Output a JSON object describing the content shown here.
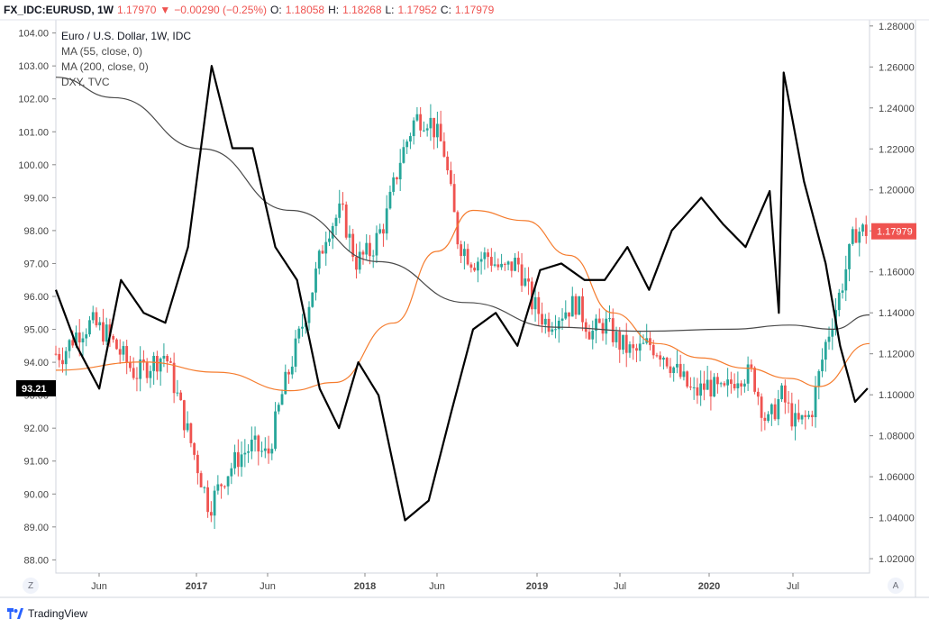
{
  "header": {
    "symbol": "FX_IDC:EURUSD, 1W",
    "last": "1.17970",
    "change_arrow": "▼",
    "change": "−0.00290 (−0.25%)",
    "o_label": "O:",
    "o_value": "1.18058",
    "h_label": "H:",
    "h_value": "1.18268",
    "l_label": "L:",
    "l_value": "1.17952",
    "c_label": "C:",
    "c_value": "1.17979"
  },
  "legend": {
    "title": "Euro / U.S. Dollar, 1W, IDC",
    "ma55": "MA (55, close, 0)",
    "ma200": "MA (200, close, 0)",
    "dxy": "DXY, TVC"
  },
  "corners": {
    "left": "Z",
    "right": "A"
  },
  "footer": {
    "brand": "TradingView",
    "logo_icon": "tradingview-logo-icon"
  },
  "colors": {
    "up": "#26a69a",
    "down": "#ef5350",
    "ma55": "#f57c2e",
    "ma200": "#4a4a4a",
    "dxy": "#000000",
    "price_badge": "#ef5350",
    "dxy_badge": "#000000"
  },
  "chart_data": {
    "type": "line",
    "title": "Euro / U.S. Dollar, 1W, IDC",
    "x_ticks": [
      "Jun",
      "2017",
      "Jun",
      "2018",
      "Jun",
      "2019",
      "Jul",
      "2020",
      "Jul"
    ],
    "right_axis": {
      "label": "EURUSD",
      "ticks": [
        "1.28000",
        "1.26000",
        "1.24000",
        "1.22000",
        "1.20000",
        "1.18000",
        "1.16000",
        "1.14000",
        "1.12000",
        "1.10000",
        "1.08000",
        "1.06000",
        "1.04000",
        "1.02000"
      ],
      "range": [
        1.013,
        1.283
      ],
      "last_value": "1.17979"
    },
    "left_axis": {
      "label": "DXY",
      "ticks": [
        "104.00",
        "103.00",
        "102.00",
        "101.00",
        "100.00",
        "99.00",
        "98.00",
        "97.00",
        "96.00",
        "95.00",
        "94.00",
        "93.00",
        "92.00",
        "91.00",
        "90.00",
        "89.00",
        "88.00"
      ],
      "range": [
        87.6,
        104.4
      ],
      "last_value": "93.21"
    },
    "x_range": [
      "2016-02-01",
      "2020-09-14"
    ],
    "series": [
      {
        "name": "Euro / U.S. Dollar, 1W, IDC",
        "kind": "candlestick",
        "axis": "right",
        "x": [
          "2016-02-15",
          "2016-03-15",
          "2016-04-15",
          "2016-05-15",
          "2016-06-15",
          "2016-07-15",
          "2016-08-15",
          "2016-09-15",
          "2016-10-15",
          "2016-11-15",
          "2016-12-15",
          "2017-01-15",
          "2017-02-15",
          "2017-03-15",
          "2017-04-15",
          "2017-05-15",
          "2017-06-15",
          "2017-07-15",
          "2017-08-15",
          "2017-09-15",
          "2017-10-15",
          "2017-11-15",
          "2017-12-15",
          "2018-01-15",
          "2018-02-15",
          "2018-03-15",
          "2018-04-15",
          "2018-05-15",
          "2018-06-15",
          "2018-07-15",
          "2018-08-15",
          "2018-09-15",
          "2018-10-15",
          "2018-11-15",
          "2018-12-15",
          "2019-01-15",
          "2019-02-15",
          "2019-03-15",
          "2019-04-15",
          "2019-05-15",
          "2019-06-15",
          "2019-07-15",
          "2019-08-15",
          "2019-09-15",
          "2019-10-15",
          "2019-11-15",
          "2019-12-15",
          "2020-01-15",
          "2020-02-15",
          "2020-03-15",
          "2020-04-15",
          "2020-05-15",
          "2020-06-15",
          "2020-07-15",
          "2020-08-15",
          "2020-09-10"
        ],
        "y": [
          1.12,
          1.13,
          1.135,
          1.13,
          1.12,
          1.11,
          1.115,
          1.12,
          1.095,
          1.07,
          1.045,
          1.06,
          1.07,
          1.075,
          1.07,
          1.1,
          1.125,
          1.15,
          1.18,
          1.19,
          1.165,
          1.17,
          1.185,
          1.215,
          1.235,
          1.235,
          1.22,
          1.175,
          1.165,
          1.168,
          1.16,
          1.165,
          1.145,
          1.135,
          1.14,
          1.145,
          1.13,
          1.135,
          1.125,
          1.12,
          1.125,
          1.12,
          1.11,
          1.1,
          1.105,
          1.1,
          1.11,
          1.11,
          1.085,
          1.1,
          1.085,
          1.09,
          1.125,
          1.15,
          1.18,
          1.18
        ]
      },
      {
        "name": "MA (55, close, 0)",
        "kind": "line",
        "axis": "right",
        "x": [
          "2016-02-01",
          "2016-08-01",
          "2017-01-01",
          "2017-06-01",
          "2017-09-01",
          "2018-01-01",
          "2018-04-01",
          "2018-06-15",
          "2018-10-01",
          "2019-01-01",
          "2019-04-01",
          "2019-07-01",
          "2019-10-01",
          "2020-01-01",
          "2020-04-01",
          "2020-06-01",
          "2020-09-14"
        ],
        "y": [
          1.112,
          1.116,
          1.111,
          1.102,
          1.106,
          1.135,
          1.17,
          1.19,
          1.185,
          1.168,
          1.14,
          1.125,
          1.118,
          1.113,
          1.108,
          1.104,
          1.125
        ]
      },
      {
        "name": "MA (200, close, 0)",
        "kind": "line",
        "axis": "right",
        "x": [
          "2016-02-01",
          "2016-06-01",
          "2016-12-01",
          "2017-06-01",
          "2017-12-01",
          "2018-06-01",
          "2018-12-01",
          "2019-06-01",
          "2019-12-01",
          "2020-04-01",
          "2020-07-01",
          "2020-09-14"
        ],
        "y": [
          1.255,
          1.245,
          1.22,
          1.19,
          1.165,
          1.145,
          1.133,
          1.131,
          1.132,
          1.134,
          1.132,
          1.139
        ]
      },
      {
        "name": "DXY, TVC",
        "kind": "line",
        "axis": "left",
        "x": [
          "2016-02-01",
          "2016-03-15",
          "2016-05-01",
          "2016-06-15",
          "2016-08-01",
          "2016-09-15",
          "2016-11-01",
          "2016-12-20",
          "2017-02-01",
          "2017-03-15",
          "2017-05-01",
          "2017-06-15",
          "2017-08-01",
          "2017-09-10",
          "2017-10-20",
          "2017-12-01",
          "2018-01-25",
          "2018-03-15",
          "2018-05-01",
          "2018-06-15",
          "2018-08-01",
          "2018-09-15",
          "2018-11-01",
          "2018-12-15",
          "2019-02-01",
          "2019-03-15",
          "2019-05-01",
          "2019-06-15",
          "2019-08-01",
          "2019-10-01",
          "2019-11-15",
          "2020-01-01",
          "2020-02-20",
          "2020-03-10",
          "2020-03-20",
          "2020-05-01",
          "2020-06-15",
          "2020-07-15",
          "2020-08-15",
          "2020-09-10"
        ],
        "y": [
          96.2,
          94.5,
          93.2,
          96.5,
          95.5,
          95.2,
          97.5,
          103.0,
          100.5,
          100.5,
          97.5,
          96.5,
          93.2,
          92.0,
          94.0,
          93.0,
          89.2,
          89.8,
          92.5,
          95.0,
          95.5,
          94.5,
          96.8,
          97.0,
          96.5,
          96.5,
          97.5,
          96.2,
          98.0,
          99.0,
          98.2,
          97.5,
          99.2,
          95.5,
          102.8,
          99.5,
          97.0,
          94.5,
          92.8,
          93.21
        ]
      }
    ]
  }
}
